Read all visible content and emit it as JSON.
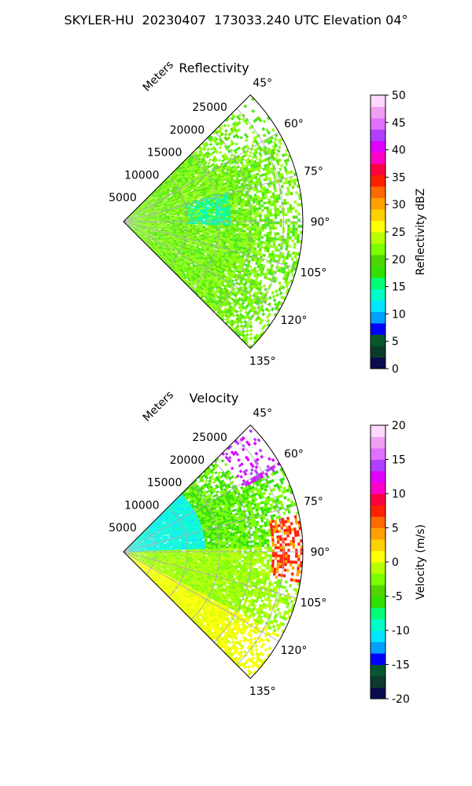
{
  "suptitle": "SKYLER-HU  20230407  173033.240 UTC Elevation 04°",
  "chart_data": [
    {
      "type": "heatmap",
      "title": "Reflectivity",
      "radial_label": "Meters",
      "radial_ticks": [
        "5000",
        "10000",
        "15000",
        "20000",
        "25000"
      ],
      "radial_values": [
        5000,
        10000,
        15000,
        20000,
        25000
      ],
      "rmax": 28000,
      "azimuth_ticks": [
        "45°",
        "60°",
        "75°",
        "90°",
        "105°",
        "120°",
        "135°"
      ],
      "azimuth_values": [
        45,
        60,
        75,
        90,
        105,
        120,
        135
      ],
      "azimuth_range": [
        45,
        135
      ],
      "grid": true,
      "colorbar": {
        "label": "Reflectivity dBZ",
        "ticks": [
          "0",
          "5",
          "10",
          "15",
          "20",
          "25",
          "30",
          "35",
          "40",
          "45",
          "50"
        ],
        "range": [
          0,
          50
        ],
        "colors": [
          "#0b0b4e",
          "#0c3a2c",
          "#07572d",
          "#0000ff",
          "#00a0ff",
          "#00e6ff",
          "#00ffc8",
          "#00ff78",
          "#30e000",
          "#4ed600",
          "#7cff00",
          "#b8ff00",
          "#ffff00",
          "#ffd000",
          "#ffa000",
          "#ff6a00",
          "#ff2000",
          "#ff0040",
          "#ff00c8",
          "#e000ff",
          "#b040ff",
          "#e070ff",
          "#f0a0f0",
          "#ffd8ff"
        ]
      }
    },
    {
      "type": "heatmap",
      "title": "Velocity",
      "radial_label": "Meters",
      "radial_ticks": [
        "5000",
        "10000",
        "15000",
        "20000",
        "25000"
      ],
      "radial_values": [
        5000,
        10000,
        15000,
        20000,
        25000
      ],
      "rmax": 28000,
      "azimuth_ticks": [
        "45°",
        "60°",
        "75°",
        "90°",
        "105°",
        "120°",
        "135°"
      ],
      "azimuth_values": [
        45,
        60,
        75,
        90,
        105,
        120,
        135
      ],
      "azimuth_range": [
        45,
        135
      ],
      "grid": true,
      "colorbar": {
        "label": "Velocity (m/s)",
        "ticks": [
          "-20",
          "-15",
          "-10",
          "-5",
          "0",
          "5",
          "10",
          "15",
          "20"
        ],
        "range": [
          -20,
          20
        ],
        "colors": [
          "#0b0b4e",
          "#0c3a2c",
          "#07572d",
          "#0000ff",
          "#00a0ff",
          "#00e6ff",
          "#00ffc8",
          "#00ff78",
          "#30e000",
          "#4ed600",
          "#7cff00",
          "#b8ff00",
          "#ffff00",
          "#ffd000",
          "#ffa000",
          "#ff6a00",
          "#ff2000",
          "#ff0040",
          "#ff00c8",
          "#e000ff",
          "#b040ff",
          "#e070ff",
          "#f0a0f0",
          "#ffd8ff"
        ]
      }
    }
  ]
}
